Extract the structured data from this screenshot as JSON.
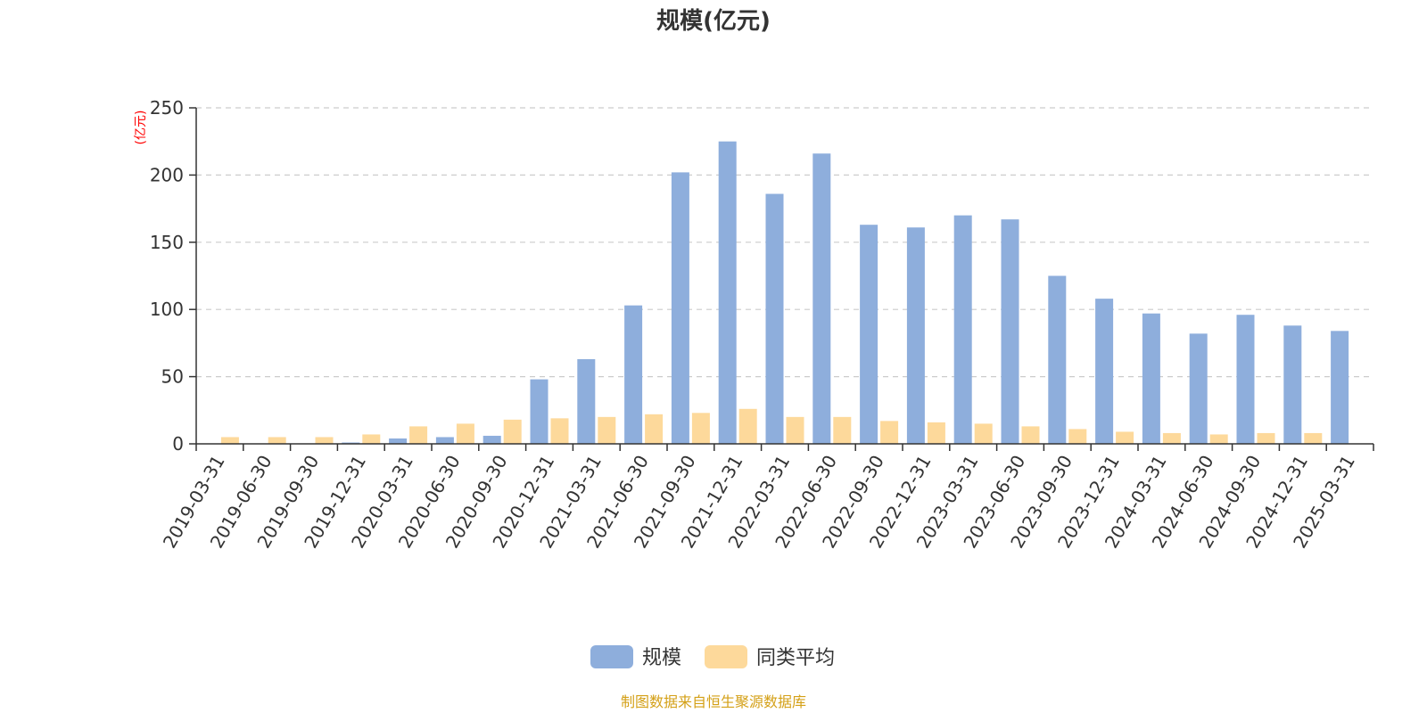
{
  "chart_data": {
    "type": "bar",
    "title": "规模(亿元)",
    "ylabel": "(亿元)",
    "ylim": [
      0,
      250
    ],
    "yticks": [
      0,
      50,
      100,
      150,
      200,
      250
    ],
    "grid": true,
    "legend_position": "bottom",
    "categories": [
      "2019-03-31",
      "2019-06-30",
      "2019-09-30",
      "2019-12-31",
      "2020-03-31",
      "2020-06-30",
      "2020-09-30",
      "2020-12-31",
      "2021-03-31",
      "2021-06-30",
      "2021-09-30",
      "2021-12-31",
      "2022-03-31",
      "2022-06-30",
      "2022-09-30",
      "2022-12-31",
      "2023-03-31",
      "2023-06-30",
      "2023-09-30",
      "2023-12-31",
      "2024-03-31",
      "2024-06-30",
      "2024-09-30",
      "2024-12-31",
      "2025-03-31"
    ],
    "series": [
      {
        "name": "规模",
        "color": "#8eaedc",
        "values": [
          0,
          0,
          0,
          1,
          4,
          5,
          6,
          48,
          63,
          103,
          202,
          225,
          186,
          216,
          163,
          161,
          170,
          167,
          125,
          108,
          97,
          82,
          96,
          88,
          84
        ]
      },
      {
        "name": "同类平均",
        "color": "#fdd99b",
        "values": [
          5,
          5,
          5,
          7,
          13,
          15,
          18,
          19,
          20,
          22,
          23,
          26,
          20,
          20,
          17,
          16,
          15,
          13,
          11,
          9,
          8,
          7,
          8,
          8,
          0
        ]
      }
    ]
  },
  "source": {
    "text": "制图数据来自恒生聚源数据库",
    "color": "#d4a017"
  },
  "colors": {
    "axis": "#333333",
    "grid": "#cccccc",
    "unit": "#ff0000"
  }
}
